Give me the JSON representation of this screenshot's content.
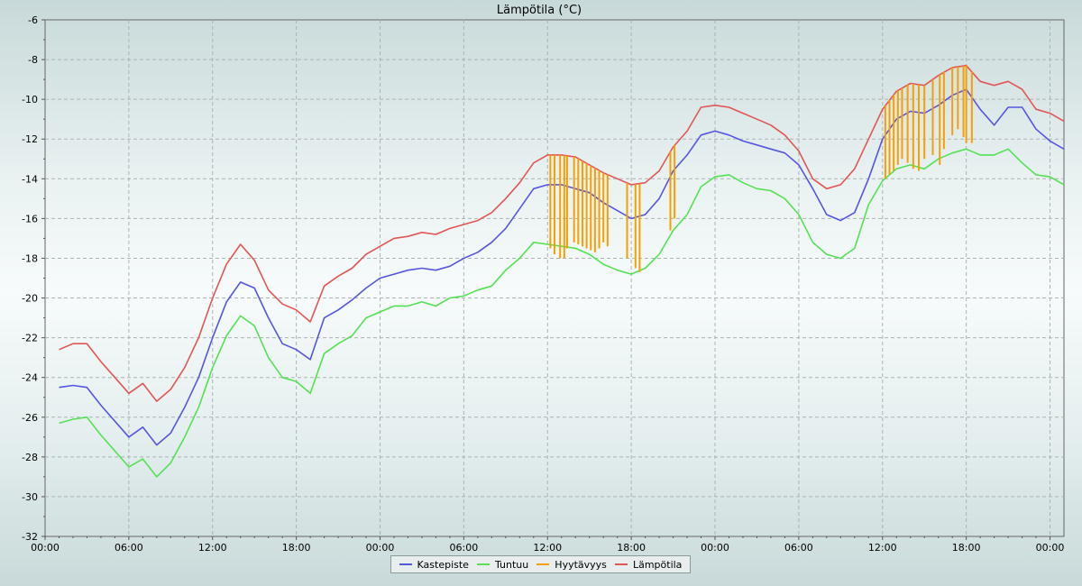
{
  "chart_data": {
    "type": "line",
    "title": "Lämpötila (°C)",
    "xlabel": "",
    "ylabel": "",
    "ylim": [
      -32,
      -6
    ],
    "y_ticks": [
      "-6",
      "-8",
      "-10",
      "-12",
      "-14",
      "-16",
      "-18",
      "-20",
      "-22",
      "-24",
      "-26",
      "-28",
      "-30",
      "-32"
    ],
    "x_tick_labels": [
      "00:00",
      "06:00",
      "12:00",
      "18:00",
      "00:00",
      "06:00",
      "12:00",
      "18:00",
      "00:00",
      "06:00",
      "12:00",
      "18:00",
      "00:00"
    ],
    "x_tick_hours": [
      0,
      6,
      12,
      18,
      24,
      30,
      36,
      42,
      48,
      54,
      60,
      66,
      72
    ],
    "xlim_hours": [
      0,
      73
    ],
    "grid": true,
    "legend_position": "bottom-center",
    "series": [
      {
        "name": "Kastepiste",
        "color": "#5555e0",
        "x": [
          1,
          2,
          3,
          4,
          5,
          6,
          7,
          8,
          9,
          10,
          11,
          12,
          13,
          14,
          15,
          16,
          17,
          18,
          19,
          20,
          21,
          22,
          23,
          24,
          25,
          26,
          27,
          28,
          29,
          30,
          31,
          32,
          33,
          34,
          35,
          36,
          37,
          38,
          39,
          40,
          41,
          42,
          43,
          44,
          45,
          46,
          47,
          48,
          49,
          50,
          51,
          52,
          53,
          54,
          55,
          56,
          57,
          58,
          59,
          60,
          61,
          62,
          63,
          64,
          65,
          66,
          67,
          68,
          69,
          70,
          71,
          72,
          73
        ],
        "values": [
          -24.5,
          -24.4,
          -24.5,
          -25.4,
          -26.2,
          -27.0,
          -26.5,
          -27.4,
          -26.8,
          -25.5,
          -24.0,
          -22.0,
          -20.2,
          -19.2,
          -19.5,
          -21.0,
          -22.3,
          -22.6,
          -23.1,
          -21.0,
          -20.6,
          -20.1,
          -19.5,
          -19.0,
          -18.8,
          -18.6,
          -18.5,
          -18.6,
          -18.4,
          -18.0,
          -17.7,
          -17.2,
          -16.5,
          -15.5,
          -14.5,
          -14.3,
          -14.3,
          -14.5,
          -14.7,
          -15.2,
          -15.6,
          -16.0,
          -15.8,
          -15.0,
          -13.6,
          -12.8,
          -11.8,
          -11.6,
          -11.8,
          -12.1,
          -12.3,
          -12.5,
          -12.7,
          -13.3,
          -14.5,
          -15.8,
          -16.1,
          -15.7,
          -14.0,
          -12.0,
          -11.0,
          -10.6,
          -10.7,
          -10.3,
          -9.8,
          -9.5,
          -10.5,
          -11.3,
          -10.4,
          -10.4,
          -11.5,
          -12.1,
          -12.5
        ]
      },
      {
        "name": "Tuntuu",
        "color": "#55e055",
        "x": [
          1,
          2,
          3,
          4,
          5,
          6,
          7,
          8,
          9,
          10,
          11,
          12,
          13,
          14,
          15,
          16,
          17,
          18,
          19,
          20,
          21,
          22,
          23,
          24,
          25,
          26,
          27,
          28,
          29,
          30,
          31,
          32,
          33,
          34,
          35,
          36,
          37,
          38,
          39,
          40,
          41,
          42,
          43,
          44,
          45,
          46,
          47,
          48,
          49,
          50,
          51,
          52,
          53,
          54,
          55,
          56,
          57,
          58,
          59,
          60,
          61,
          62,
          63,
          64,
          65,
          66,
          67,
          68,
          69,
          70,
          71,
          72,
          73
        ],
        "values": [
          -26.3,
          -26.1,
          -26.0,
          -26.9,
          -27.7,
          -28.5,
          -28.1,
          -29.0,
          -28.3,
          -27.0,
          -25.5,
          -23.5,
          -21.9,
          -20.9,
          -21.4,
          -23.0,
          -24.0,
          -24.2,
          -24.8,
          -22.8,
          -22.3,
          -21.9,
          -21.0,
          -20.7,
          -20.4,
          -20.4,
          -20.2,
          -20.4,
          -20.0,
          -19.9,
          -19.6,
          -19.4,
          -18.6,
          -18.0,
          -17.2,
          -17.3,
          -17.4,
          -17.5,
          -17.8,
          -18.3,
          -18.6,
          -18.8,
          -18.5,
          -17.8,
          -16.6,
          -15.8,
          -14.4,
          -13.9,
          -13.8,
          -14.2,
          -14.5,
          -14.6,
          -15.0,
          -15.8,
          -17.2,
          -17.8,
          -18.0,
          -17.5,
          -15.3,
          -14.1,
          -13.5,
          -13.3,
          -13.5,
          -13.0,
          -12.7,
          -12.5,
          -12.8,
          -12.8,
          -12.5,
          -13.2,
          -13.8,
          -13.9,
          -14.3
        ]
      },
      {
        "name": "Hyytävyys",
        "color": "#f5a000",
        "x": [
          36.2,
          36.5,
          36.9,
          37.2,
          37.4,
          37.9,
          38.2,
          38.5,
          38.8,
          39.1,
          39.4,
          39.7,
          40.0,
          40.3,
          41.7,
          42.3,
          42.6,
          44.8,
          45.1,
          60.2,
          60.5,
          60.8,
          61.1,
          61.4,
          61.8,
          62.2,
          62.6,
          63.0,
          63.6,
          64.1,
          64.4,
          65.0,
          65.4,
          65.8,
          66.0,
          66.4
        ],
        "values": [
          -17.5,
          -17.8,
          -18.0,
          -18.0,
          -17.5,
          -17.2,
          -17.3,
          -17.4,
          -17.5,
          -17.6,
          -17.7,
          -17.5,
          -17.2,
          -17.4,
          -18.0,
          -18.5,
          -18.7,
          -16.6,
          -16.0,
          -14.0,
          -13.8,
          -13.6,
          -13.3,
          -13.0,
          -13.2,
          -13.5,
          -13.6,
          -13.0,
          -12.8,
          -13.3,
          -12.5,
          -11.8,
          -11.5,
          -11.9,
          -12.2,
          -12.2
        ]
      },
      {
        "name": "Lämpötila",
        "color": "#e05555",
        "x": [
          1,
          2,
          3,
          4,
          5,
          6,
          7,
          8,
          9,
          10,
          11,
          12,
          13,
          14,
          15,
          16,
          17,
          18,
          19,
          20,
          21,
          22,
          23,
          24,
          25,
          26,
          27,
          28,
          29,
          30,
          31,
          32,
          33,
          34,
          35,
          36,
          37,
          38,
          39,
          40,
          41,
          42,
          43,
          44,
          45,
          46,
          47,
          48,
          49,
          50,
          51,
          52,
          53,
          54,
          55,
          56,
          57,
          58,
          59,
          60,
          61,
          62,
          63,
          64,
          65,
          66,
          67,
          68,
          69,
          70,
          71,
          72,
          73
        ],
        "values": [
          -22.6,
          -22.3,
          -22.3,
          -23.2,
          -24.0,
          -24.8,
          -24.3,
          -25.2,
          -24.6,
          -23.5,
          -22.0,
          -20.0,
          -18.3,
          -17.3,
          -18.1,
          -19.6,
          -20.3,
          -20.6,
          -21.2,
          -19.4,
          -18.9,
          -18.5,
          -17.8,
          -17.4,
          -17.0,
          -16.9,
          -16.7,
          -16.8,
          -16.5,
          -16.3,
          -16.1,
          -15.7,
          -15.0,
          -14.2,
          -13.2,
          -12.8,
          -12.8,
          -12.9,
          -13.3,
          -13.7,
          -14.0,
          -14.3,
          -14.2,
          -13.6,
          -12.4,
          -11.6,
          -10.4,
          -10.3,
          -10.4,
          -10.7,
          -11.0,
          -11.3,
          -11.8,
          -12.6,
          -14.0,
          -14.5,
          -14.3,
          -13.5,
          -12.0,
          -10.5,
          -9.6,
          -9.2,
          -9.3,
          -8.8,
          -8.4,
          -8.3,
          -9.1,
          -9.3,
          -9.1,
          -9.5,
          -10.5,
          -10.7,
          -11.1
        ]
      }
    ]
  }
}
